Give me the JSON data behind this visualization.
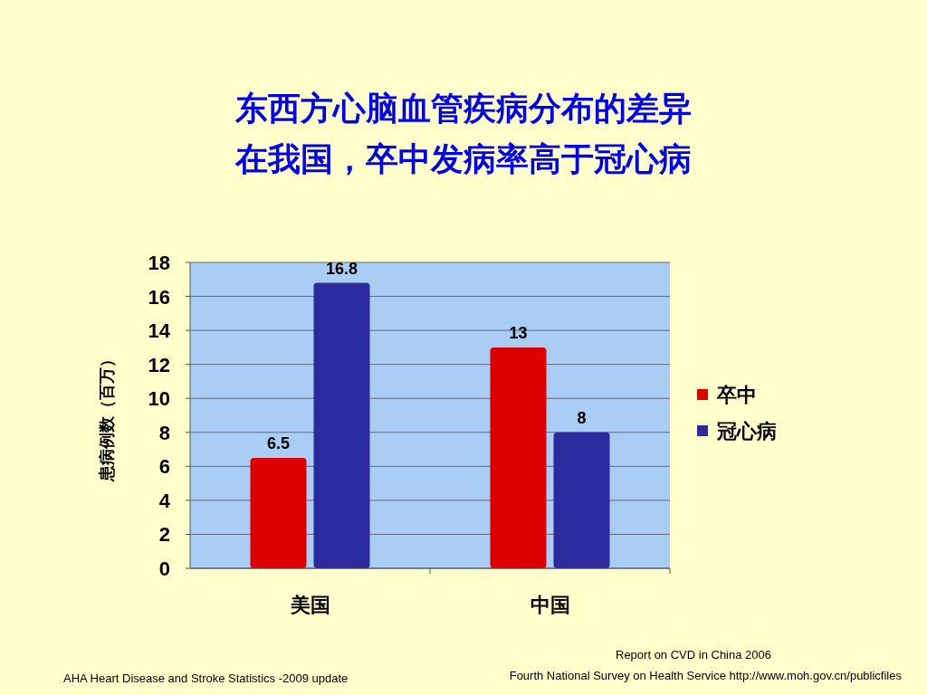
{
  "chart_data": {
    "type": "bar",
    "title": "东西方心脑血管疾病分布的差异",
    "subtitle": "在我国，卒中发病率高于冠心病",
    "ylabel": "患病例数（百万）",
    "categories": [
      "美国",
      "中国"
    ],
    "series": [
      {
        "name": "卒中",
        "color": "#dd0000",
        "values": [
          6.5,
          13
        ]
      },
      {
        "name": "冠心病",
        "color": "#2b2b9e",
        "values": [
          16.8,
          8
        ]
      }
    ],
    "ylim": [
      0,
      18
    ],
    "yticks": [
      0,
      2,
      4,
      6,
      8,
      10,
      12,
      14,
      16,
      18
    ],
    "grid": "y",
    "legend": "right",
    "data_labels": true,
    "annotations": [
      "Report on CVD in China 2006",
      "AHA Heart Disease and Stroke Statistics -2009 update",
      "Fourth National Survey on Health Service http://www.moh.gov.cn/publicfiles"
    ]
  }
}
